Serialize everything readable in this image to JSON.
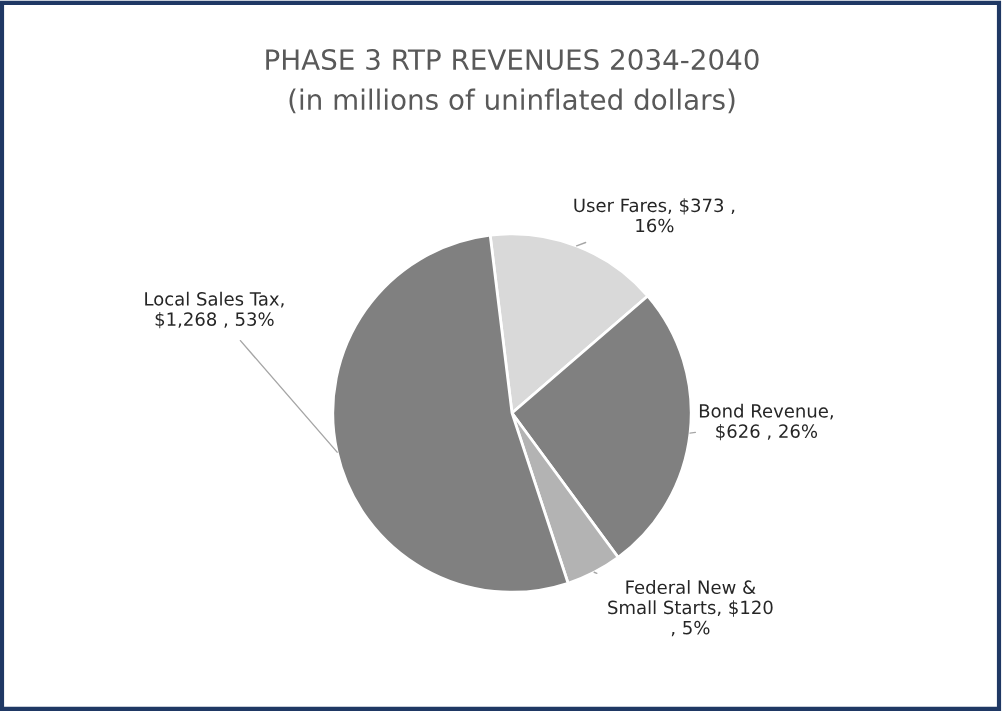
{
  "chart_data": {
    "type": "pie",
    "title": "PHASE 3 RTP REVENUES 2034-2040",
    "subtitle": "(in millions of uninflated dollars)",
    "categories": [
      "User Fares",
      "Bond Revenue",
      "Federal New & Small Starts",
      "Local Sales Tax"
    ],
    "values": [
      373,
      626,
      120,
      1268
    ],
    "value_labels": [
      ", $373 , 16%",
      ", $626 , 26%",
      ", $120 , 5%",
      ", $1,268 , 53%"
    ],
    "colors": [
      "#d9d9d9",
      "#808080",
      "#b3b3b3",
      "#808080"
    ],
    "legend": false
  }
}
